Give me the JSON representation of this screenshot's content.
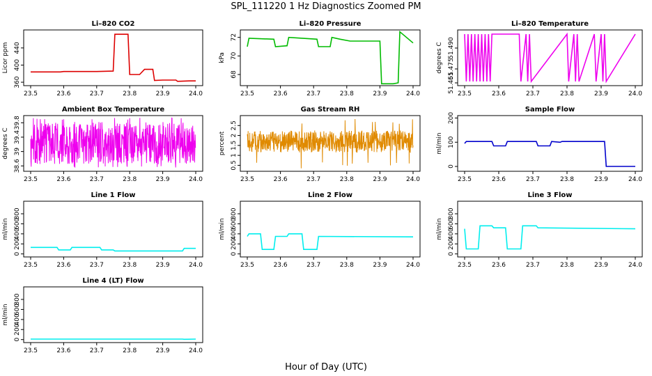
{
  "figure": {
    "title": "SPL_111220  1 Hz Diagnostics Zoomed PM",
    "xlabel": "Hour of Day (UTC)"
  },
  "chart_data": [
    {
      "id": "p0",
      "type": "line",
      "title": "Li–820 CO2",
      "ylabel": "Licor ppm",
      "color": "#dd0000",
      "xlim": [
        23.5,
        24.0
      ],
      "ylim": [
        352,
        482
      ],
      "xticks": [
        "23.5",
        "23.6",
        "23.7",
        "23.8",
        "23.9",
        "24.0"
      ],
      "yticks": [
        360,
        400,
        440
      ],
      "series": [
        {
          "x": [
            23.5,
            23.59,
            23.6,
            23.7,
            23.75,
            23.755,
            23.795,
            23.8,
            23.83,
            23.845,
            23.87,
            23.875,
            23.9,
            23.94,
            23.945,
            23.98,
            24.0
          ],
          "y": [
            384,
            384,
            385,
            385,
            386,
            472,
            472,
            378,
            378,
            390,
            390,
            364,
            365,
            365,
            362,
            363,
            363
          ]
        }
      ]
    },
    {
      "id": "p1",
      "type": "line",
      "title": "Li–820 Pressure",
      "ylabel": "kPa",
      "color": "#00bb00",
      "xlim": [
        23.5,
        24.0
      ],
      "ylim": [
        66.8,
        72.8
      ],
      "xticks": [
        "23.5",
        "23.6",
        "23.7",
        "23.8",
        "23.9",
        "24.0"
      ],
      "yticks": [
        68,
        70,
        72
      ],
      "series": [
        {
          "x": [
            23.5,
            23.505,
            23.58,
            23.585,
            23.62,
            23.625,
            23.71,
            23.715,
            23.75,
            23.755,
            23.78,
            23.81,
            23.9,
            23.905,
            23.94,
            23.955,
            23.96,
            24.0
          ],
          "y": [
            71.0,
            71.9,
            71.8,
            71.0,
            71.1,
            72.0,
            71.8,
            71.0,
            71.0,
            72.0,
            71.8,
            71.6,
            71.6,
            67.0,
            67.0,
            67.1,
            72.6,
            71.4
          ]
        }
      ]
    },
    {
      "id": "p2",
      "type": "line",
      "title": "Li–820 Temperature",
      "ylabel": "degrees C",
      "color": "#ee00ee",
      "xlim": [
        23.5,
        24.0
      ],
      "ylim": [
        51.463,
        51.503
      ],
      "xticks": [
        "23.5",
        "23.6",
        "23.7",
        "23.8",
        "23.9",
        "24.0"
      ],
      "yticks": [
        51.465,
        51.475,
        51.49
      ],
      "yticklabels": [
        "51.465",
        "51.475",
        "51.490"
      ],
      "series": [
        {
          "x": [
            23.5,
            23.505,
            23.51,
            23.515,
            23.52,
            23.525,
            23.53,
            23.535,
            23.54,
            23.545,
            23.55,
            23.555,
            23.56,
            23.565,
            23.57,
            23.575,
            23.58,
            23.66,
            23.665,
            23.68,
            23.685,
            23.69,
            23.695,
            23.8,
            23.805,
            23.82,
            23.825,
            23.83,
            23.835,
            23.88,
            23.885,
            23.9,
            23.905,
            23.91,
            23.915,
            24.0
          ],
          "y": [
            51.5,
            51.466,
            51.5,
            51.466,
            51.5,
            51.466,
            51.5,
            51.466,
            51.5,
            51.466,
            51.5,
            51.466,
            51.5,
            51.466,
            51.5,
            51.466,
            51.5,
            51.5,
            51.466,
            51.5,
            51.466,
            51.5,
            51.466,
            51.5,
            51.466,
            51.5,
            51.466,
            51.5,
            51.466,
            51.5,
            51.466,
            51.5,
            51.466,
            51.5,
            51.466,
            51.5
          ]
        }
      ]
    },
    {
      "id": "p3",
      "type": "line",
      "title": "Ambient Box Temperature",
      "ylabel": "degrees C",
      "color": "#ee00ee",
      "xlim": [
        23.5,
        24.0
      ],
      "ylim": [
        38.45,
        40.0
      ],
      "xticks": [
        "23.5",
        "23.6",
        "23.7",
        "23.8",
        "23.9",
        "24.0"
      ],
      "yticks": [
        38.6,
        39.0,
        39.4,
        39.8
      ],
      "band": {
        "low": 38.65,
        "high": 39.82,
        "spike_high": 39.95,
        "spike_low": 38.55
      }
    },
    {
      "id": "p4",
      "type": "line",
      "title": "Gas Stream RH",
      "ylabel": "percent",
      "color": "#e08a00",
      "xlim": [
        23.5,
        24.0
      ],
      "ylim": [
        0.2,
        3.0
      ],
      "xticks": [
        "23.5",
        "23.6",
        "23.7",
        "23.8",
        "23.9",
        "24.0"
      ],
      "yticks": [
        0.5,
        1.0,
        1.5,
        2.0,
        2.5
      ],
      "band": {
        "low": 1.15,
        "high": 2.25,
        "spike_high": 2.9,
        "spike_low": 0.3
      }
    },
    {
      "id": "p5",
      "type": "line",
      "title": "Sample Flow",
      "ylabel": "ml/min",
      "color": "#0000cc",
      "xlim": [
        23.5,
        24.0
      ],
      "ylim": [
        -20,
        210
      ],
      "xticks": [
        "23.5",
        "23.6",
        "23.7",
        "23.8",
        "23.9",
        "24.0"
      ],
      "yticks": [
        0,
        100,
        200
      ],
      "series": [
        {
          "x": [
            23.5,
            23.505,
            23.58,
            23.585,
            23.62,
            23.625,
            23.71,
            23.715,
            23.75,
            23.755,
            23.78,
            23.785,
            23.91,
            23.915,
            24.0
          ],
          "y": [
            95,
            103,
            103,
            85,
            85,
            103,
            103,
            85,
            85,
            103,
            100,
            103,
            103,
            0,
            0
          ]
        }
      ]
    },
    {
      "id": "p6",
      "type": "line",
      "title": "Line 1 Flow",
      "ylabel": "ml/min",
      "color": "#00eeee",
      "xlim": [
        23.5,
        24.0
      ],
      "ylim": [
        -60,
        1050
      ],
      "xticks": [
        "23.5",
        "23.6",
        "23.7",
        "23.8",
        "23.9",
        "24.0"
      ],
      "yticks": [
        0,
        200,
        400,
        600,
        800
      ],
      "series": [
        {
          "x": [
            23.5,
            23.58,
            23.585,
            23.62,
            23.625,
            23.71,
            23.715,
            23.75,
            23.755,
            23.96,
            23.965,
            24.0
          ],
          "y": [
            130,
            130,
            80,
            80,
            130,
            130,
            80,
            80,
            60,
            60,
            110,
            110
          ]
        }
      ]
    },
    {
      "id": "p7",
      "type": "line",
      "title": "Line 2 Flow",
      "ylabel": "ml/min",
      "color": "#00eeee",
      "xlim": [
        23.5,
        24.0
      ],
      "ylim": [
        -60,
        1050
      ],
      "xticks": [
        "23.5",
        "23.6",
        "23.7",
        "23.8",
        "23.9",
        "24.0"
      ],
      "yticks": [
        0,
        200,
        400,
        600,
        800
      ],
      "series": [
        {
          "x": [
            23.5,
            23.505,
            23.54,
            23.545,
            23.58,
            23.585,
            23.62,
            23.625,
            23.665,
            23.67,
            23.71,
            23.715,
            24.0
          ],
          "y": [
            350,
            400,
            400,
            90,
            90,
            350,
            350,
            400,
            400,
            90,
            90,
            350,
            340
          ]
        }
      ]
    },
    {
      "id": "p8",
      "type": "line",
      "title": "Line 3 Flow",
      "ylabel": "ml/min",
      "color": "#00eeee",
      "xlim": [
        23.5,
        24.0
      ],
      "ylim": [
        -60,
        1050
      ],
      "xticks": [
        "23.5",
        "23.6",
        "23.7",
        "23.8",
        "23.9",
        "24.0"
      ],
      "yticks": [
        0,
        200,
        400,
        600,
        800
      ],
      "series": [
        {
          "x": [
            23.5,
            23.505,
            23.54,
            23.545,
            23.58,
            23.585,
            23.62,
            23.625,
            23.665,
            23.67,
            23.71,
            23.715,
            24.0
          ],
          "y": [
            500,
            100,
            100,
            560,
            560,
            520,
            520,
            100,
            100,
            560,
            560,
            520,
            500
          ]
        }
      ]
    },
    {
      "id": "p9",
      "type": "line",
      "title": "Line 4 (LT) Flow",
      "ylabel": "ml/min",
      "color": "#00eeee",
      "xlim": [
        23.5,
        24.0
      ],
      "ylim": [
        -60,
        1050
      ],
      "xticks": [
        "23.5",
        "23.6",
        "23.7",
        "23.8",
        "23.9",
        "24.0"
      ],
      "yticks": [
        0,
        200,
        400,
        600,
        800
      ],
      "series": [
        {
          "x": [
            23.5,
            23.96,
            23.965,
            24.0
          ],
          "y": [
            10,
            10,
            5,
            10
          ]
        }
      ]
    }
  ]
}
